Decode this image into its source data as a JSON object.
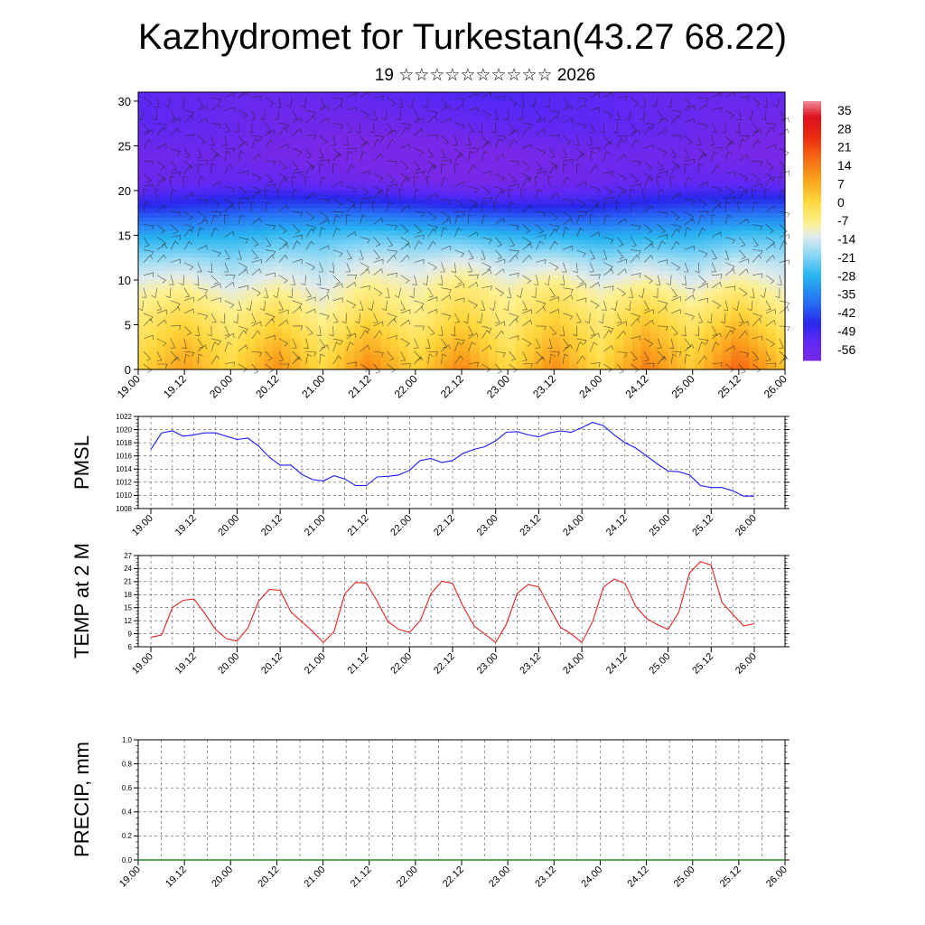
{
  "header": {
    "title": "Kazhydromet for Turkestan(43.27 68.22)",
    "subtitle": "19 ☆☆☆☆☆☆☆☆☆☆ 2026"
  },
  "time_ticks": [
    "19.00",
    "19.12",
    "20.00",
    "20.12",
    "21.00",
    "21.12",
    "22.00",
    "22.12",
    "23.00",
    "23.12",
    "24.00",
    "24.12",
    "25.00",
    "25.12",
    "26.00"
  ],
  "chart_data": [
    {
      "id": "cross-section",
      "type": "heatmap",
      "title": "",
      "xlabel": "",
      "ylabel": "",
      "x_categories": [
        "19.00",
        "19.12",
        "20.00",
        "20.12",
        "21.00",
        "21.12",
        "22.00",
        "22.12",
        "23.00",
        "23.12",
        "24.00",
        "24.12",
        "25.00",
        "25.12",
        "26.00"
      ],
      "ylim": [
        0,
        31
      ],
      "y_ticks": [
        0,
        5,
        10,
        15,
        20,
        25,
        30
      ],
      "colorbar_labels": [
        35,
        28,
        21,
        14,
        7,
        0,
        -7,
        -14,
        -21,
        -28,
        -35,
        -42,
        -49,
        -56
      ],
      "colorbar_range": [
        -60,
        38
      ],
      "surface_temp": [
        8,
        17,
        7,
        19,
        7,
        21,
        9,
        21,
        7,
        20,
        7,
        22,
        10,
        26,
        11
      ],
      "levels": [
        0,
        3,
        6,
        9,
        12,
        15,
        18,
        21,
        24,
        27,
        31
      ],
      "lapse_fraction": [
        0.0,
        0.25,
        0.45,
        0.62,
        0.78,
        0.95,
        1.0,
        1.0,
        1.0,
        1.0,
        1.0
      ],
      "level_base": [
        6,
        1,
        -4,
        -9,
        -16,
        -27,
        -43,
        -57,
        -60,
        -56,
        -53
      ],
      "annotations": "wind barbs overlaid on temperature field"
    },
    {
      "id": "pmsl",
      "type": "line",
      "ylabel": "PMSL",
      "ylim": [
        1008,
        1022
      ],
      "y_ticks": [
        1008,
        1010,
        1012,
        1014,
        1016,
        1018,
        1020,
        1022
      ],
      "color": "#1a1aff",
      "values": [
        1017,
        1019.5,
        1019.8,
        1019,
        1019.2,
        1019.5,
        1019.5,
        1019,
        1018.5,
        1018.7,
        1017.5,
        1015.8,
        1014.6,
        1014.6,
        1013.2,
        1012.4,
        1012.2,
        1013,
        1012.5,
        1011.5,
        1011.5,
        1012.8,
        1012.9,
        1013.1,
        1013.8,
        1015.3,
        1015.6,
        1015,
        1015.3,
        1016.4,
        1017,
        1017.4,
        1018.3,
        1019.6,
        1019.7,
        1019.2,
        1018.9,
        1019.5,
        1019.8,
        1019.6,
        1020.3,
        1021.1,
        1020.6,
        1019.2,
        1018,
        1017.2,
        1016,
        1014.8,
        1013.7,
        1013.6,
        1013.1,
        1011.5,
        1011.2,
        1011.2,
        1010.7,
        1009.9,
        1009.9
      ]
    },
    {
      "id": "temp2m",
      "type": "line",
      "ylabel": "TEMP at 2 M",
      "ylim": [
        6,
        27
      ],
      "y_ticks": [
        6,
        9,
        12,
        15,
        18,
        21,
        24,
        27
      ],
      "color": "#e62020",
      "values": [
        8.2,
        8.7,
        15,
        16.7,
        17,
        13.7,
        10,
        7.9,
        7.3,
        10.3,
        16.5,
        19.2,
        19,
        14,
        11.8,
        9.6,
        7,
        9.5,
        18.2,
        20.8,
        20.7,
        16.5,
        11.8,
        10,
        9.3,
        12,
        18.2,
        21.1,
        20.6,
        15.2,
        10.8,
        8.9,
        7,
        11.2,
        18.3,
        20.3,
        19.8,
        15,
        10.5,
        9,
        7,
        11.8,
        19.7,
        21.6,
        20.6,
        15.3,
        12.5,
        11.1,
        10,
        14,
        23,
        25.6,
        24.8,
        16.2,
        13.5,
        10.8,
        11.3
      ]
    },
    {
      "id": "precip",
      "type": "bar",
      "ylabel": "PRECIP, mm",
      "ylim": [
        0,
        1.0
      ],
      "y_ticks": [
        "0.0",
        "0.2",
        "0.4",
        "0.6",
        "0.8",
        "1.0"
      ],
      "values": [
        0,
        0,
        0,
        0,
        0,
        0,
        0,
        0,
        0,
        0,
        0,
        0,
        0,
        0,
        0,
        0,
        0,
        0,
        0,
        0,
        0,
        0,
        0,
        0,
        0,
        0,
        0,
        0,
        0,
        0,
        0,
        0,
        0,
        0,
        0,
        0,
        0,
        0,
        0,
        0,
        0,
        0,
        0,
        0,
        0,
        0,
        0,
        0,
        0,
        0,
        0,
        0,
        0,
        0,
        0,
        0,
        0
      ]
    }
  ]
}
